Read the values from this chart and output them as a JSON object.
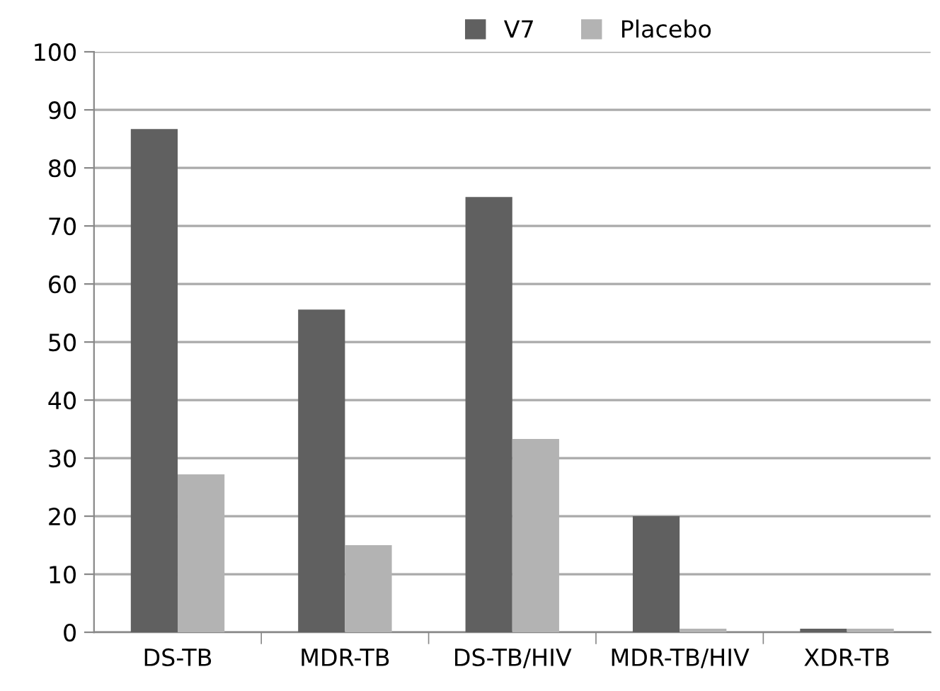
{
  "chart_data": {
    "type": "bar",
    "categories": [
      "DS-TB",
      "MDR-TB",
      "DS-TB/HIV",
      "MDR-TB/HIV",
      "XDR-TB"
    ],
    "series": [
      {
        "name": "V7",
        "color": "#606060",
        "values": [
          86.7,
          55.6,
          75,
          20,
          0.6
        ]
      },
      {
        "name": "Placebo",
        "color": "#b3b3b3",
        "values": [
          27.2,
          15,
          33.3,
          0.6,
          0.6
        ]
      }
    ],
    "ylim": [
      0,
      100
    ],
    "yticks": [
      0,
      10,
      20,
      30,
      40,
      50,
      60,
      70,
      80,
      90,
      100
    ],
    "grid": "y",
    "legend": "top right"
  }
}
